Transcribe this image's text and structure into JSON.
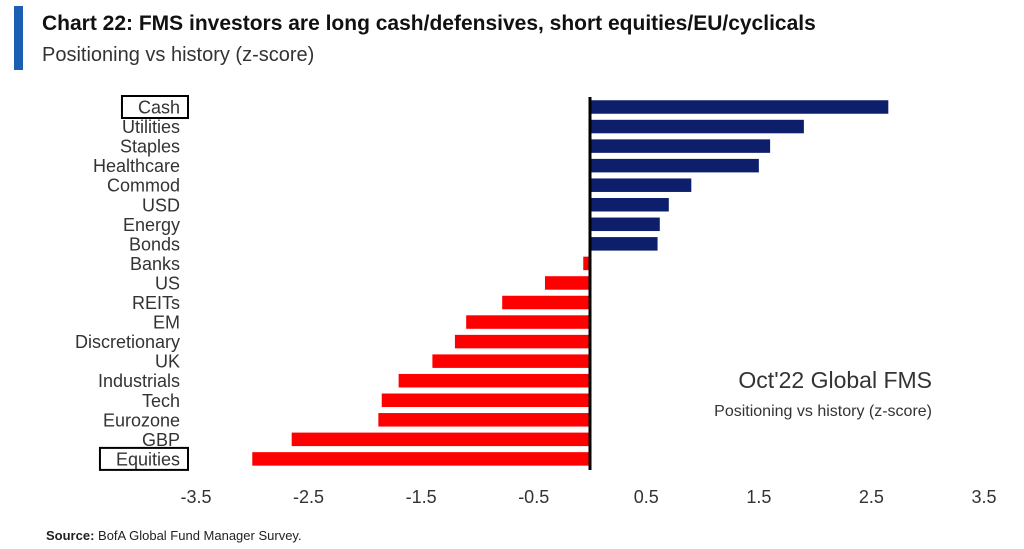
{
  "header": {
    "title": "Chart 22: FMS investors are long cash/defensives, short equities/EU/cyclicals",
    "subtitle": "Positioning vs history (z-score)"
  },
  "annotation": {
    "title": "Oct'22 Global FMS",
    "subtitle": "Positioning vs history (z-score)"
  },
  "footer": {
    "source_label": "Source:",
    "source_text": "BofA Global Fund Manager Survey."
  },
  "colors": {
    "positive": "#0d1f6b",
    "negative": "#ff0000",
    "axis": "#000000"
  },
  "chart_data": {
    "type": "bar",
    "orientation": "horizontal",
    "categories": [
      "Cash",
      "Utilities",
      "Staples",
      "Healthcare",
      "Commod",
      "USD",
      "Energy",
      "Bonds",
      "Banks",
      "US",
      "REITs",
      "EM",
      "Discretionary",
      "UK",
      "Industrials",
      "Tech",
      "Eurozone",
      "GBP",
      "Equities"
    ],
    "values": [
      2.65,
      1.9,
      1.6,
      1.5,
      0.9,
      0.7,
      0.62,
      0.6,
      -0.06,
      -0.4,
      -0.78,
      -1.1,
      -1.2,
      -1.4,
      -1.7,
      -1.85,
      -1.88,
      -2.65,
      -3.0
    ],
    "boxed_categories": [
      "Cash",
      "Equities"
    ],
    "xlim": [
      -3.5,
      3.5
    ],
    "xticks": [
      "-3.5",
      "-2.5",
      "-1.5",
      "-0.5",
      "0.5",
      "1.5",
      "2.5",
      "3.5"
    ],
    "xtick_values": [
      -3.5,
      -2.5,
      -1.5,
      -0.5,
      0.5,
      1.5,
      2.5,
      3.5
    ],
    "grid": false
  }
}
